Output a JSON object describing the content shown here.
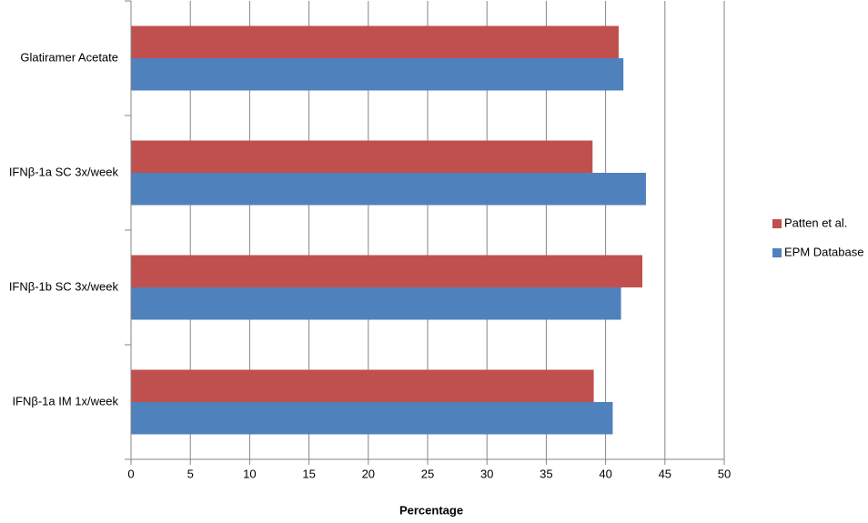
{
  "chart_data": {
    "type": "hbar",
    "x_label": "Percentage",
    "categories": [
      "Glatiramer Acetate",
      "IFNβ-1a SC 3x/week",
      "IFNβ-1b SC 3x/week",
      "IFNβ-1a IM 1x/week"
    ],
    "series": [
      {
        "name": "Patten et al.",
        "color": "#c0504d",
        "values": [
          41.1,
          38.9,
          43.1,
          39.0
        ]
      },
      {
        "name": "EPM Database",
        "color": "#4f81bd",
        "values": [
          41.5,
          43.4,
          41.3,
          40.6
        ]
      }
    ],
    "xlim": [
      0,
      50
    ],
    "xticks": [
      0,
      5,
      10,
      15,
      20,
      25,
      30,
      35,
      40,
      45,
      50
    ],
    "grid": true,
    "legend": "right"
  }
}
